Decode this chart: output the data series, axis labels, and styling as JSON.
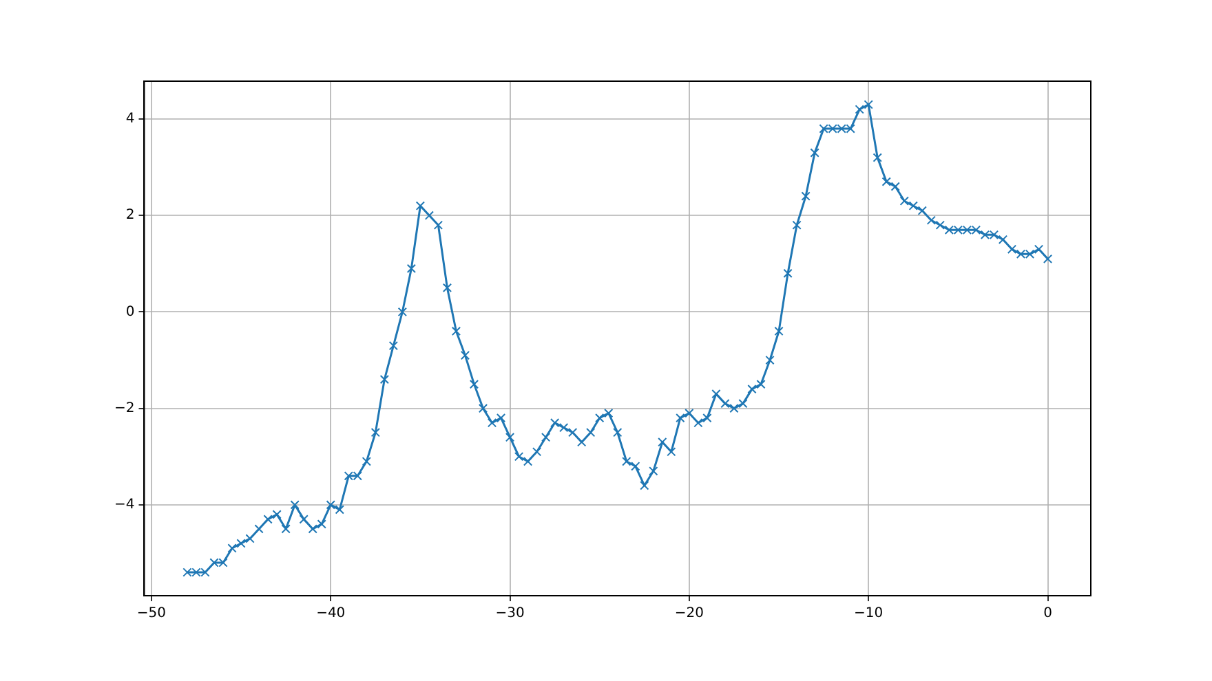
{
  "chart_data": {
    "type": "line",
    "x": [
      -48,
      -47.5,
      -47,
      -46.5,
      -46,
      -45.5,
      -45,
      -44.5,
      -44,
      -43.5,
      -43,
      -42.5,
      -42,
      -41.5,
      -41,
      -40.5,
      -40,
      -39.5,
      -39,
      -38.5,
      -38,
      -37.5,
      -37,
      -36.5,
      -36,
      -35.5,
      -35,
      -34.5,
      -34,
      -33.5,
      -33,
      -32.5,
      -32,
      -31.5,
      -31,
      -30.5,
      -30,
      -29.5,
      -29,
      -28.5,
      -28,
      -27.5,
      -27,
      -26.5,
      -26,
      -25.5,
      -25,
      -24.5,
      -24,
      -23.5,
      -23,
      -22.5,
      -22,
      -21.5,
      -21,
      -20.5,
      -20,
      -19.5,
      -19,
      -18.5,
      -18,
      -17.5,
      -17,
      -16.5,
      -16,
      -15.5,
      -15,
      -14.5,
      -14,
      -13.5,
      -13,
      -12.5,
      -12,
      -11.5,
      -11,
      -10.5,
      -10,
      -9.5,
      -9,
      -8.5,
      -8,
      -7.5,
      -7,
      -6.5,
      -6,
      -5.5,
      -5,
      -4.5,
      -4,
      -3.5,
      -3,
      -2.5,
      -2,
      -1.5,
      -1,
      -0.5,
      0
    ],
    "series": [
      {
        "color": "#1f77b4",
        "values": [
          -5.4,
          -5.4,
          -5.4,
          -5.2,
          -5.2,
          -4.9,
          -4.8,
          -4.7,
          -4.5,
          -4.3,
          -4.2,
          -4.5,
          -4.0,
          -4.3,
          -4.5,
          -4.4,
          -4.0,
          -4.1,
          -3.4,
          -3.4,
          -3.1,
          -2.5,
          -1.4,
          -0.7,
          0.0,
          0.9,
          2.2,
          2.0,
          1.8,
          0.5,
          -0.4,
          -0.9,
          -1.5,
          -2.0,
          -2.3,
          -2.2,
          -2.6,
          -3.0,
          -3.1,
          -2.9,
          -2.6,
          -2.3,
          -2.4,
          -2.5,
          -2.7,
          -2.5,
          -2.2,
          -2.1,
          -2.5,
          -3.1,
          -3.2,
          -3.6,
          -3.3,
          -2.7,
          -2.9,
          -2.2,
          -2.1,
          -2.3,
          -2.2,
          -1.7,
          -1.9,
          -2.0,
          -1.9,
          -1.6,
          -1.5,
          -1.0,
          -0.4,
          0.8,
          1.8,
          2.4,
          3.3,
          3.8,
          3.8,
          3.8,
          3.8,
          4.2,
          4.3,
          3.2,
          2.7,
          2.6,
          2.3,
          2.2,
          2.1,
          1.9,
          1.8,
          1.7,
          1.7,
          1.7,
          1.7,
          1.6,
          1.6,
          1.5,
          1.3,
          1.2,
          1.2,
          1.3,
          1.1
        ]
      }
    ],
    "xlim": [
      -50.4,
      2.4
    ],
    "ylim": [
      -5.885,
      4.785
    ],
    "xticks": [
      -50,
      -40,
      -30,
      -20,
      -10,
      0
    ],
    "yticks": [
      -4,
      -2,
      0,
      2,
      4
    ],
    "grid": true,
    "marker": "cross",
    "line_style": "solid"
  }
}
